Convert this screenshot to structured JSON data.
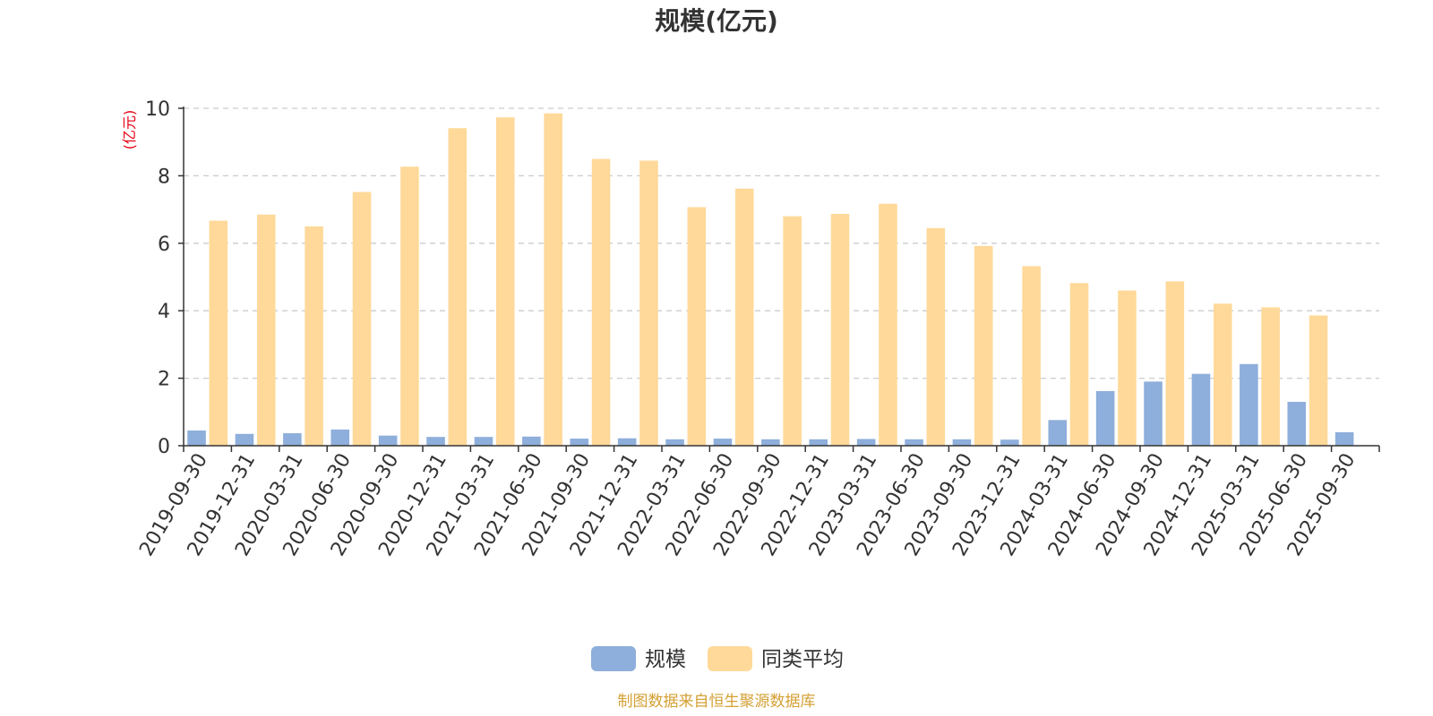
{
  "chart_data": {
    "type": "bar",
    "title": "规模(亿元)",
    "ylabel": "(亿元)",
    "xlabel": "",
    "ylim": [
      0,
      10
    ],
    "yticks": [
      0,
      2,
      4,
      6,
      8,
      10
    ],
    "grid": true,
    "legend_position": "bottom",
    "categories": [
      "2019-09-30",
      "2019-12-31",
      "2020-03-31",
      "2020-06-30",
      "2020-09-30",
      "2020-12-31",
      "2021-03-31",
      "2021-06-30",
      "2021-09-30",
      "2021-12-31",
      "2022-03-31",
      "2022-06-30",
      "2022-09-30",
      "2022-12-31",
      "2023-03-31",
      "2023-06-30",
      "2023-09-30",
      "2023-12-31",
      "2024-03-31",
      "2024-06-30",
      "2024-09-30",
      "2024-12-31",
      "2025-03-31",
      "2025-06-30",
      "2025-09-30"
    ],
    "series": [
      {
        "name": "规模",
        "color": "#8eaedb",
        "values": [
          0.45,
          0.35,
          0.37,
          0.48,
          0.3,
          0.26,
          0.26,
          0.27,
          0.21,
          0.22,
          0.19,
          0.21,
          0.19,
          0.19,
          0.2,
          0.19,
          0.19,
          0.18,
          0.76,
          1.62,
          1.9,
          2.13,
          2.42,
          1.3,
          0.4
        ]
      },
      {
        "name": "同类平均",
        "color": "#ffd999",
        "values": [
          6.67,
          6.85,
          6.5,
          7.52,
          8.27,
          9.41,
          9.73,
          9.85,
          8.5,
          8.45,
          7.07,
          7.62,
          6.8,
          6.87,
          7.17,
          6.45,
          5.92,
          5.32,
          4.82,
          4.6,
          4.87,
          4.21,
          4.1,
          3.86,
          null
        ]
      }
    ],
    "source": "制图数据来自恒生聚源数据库"
  }
}
